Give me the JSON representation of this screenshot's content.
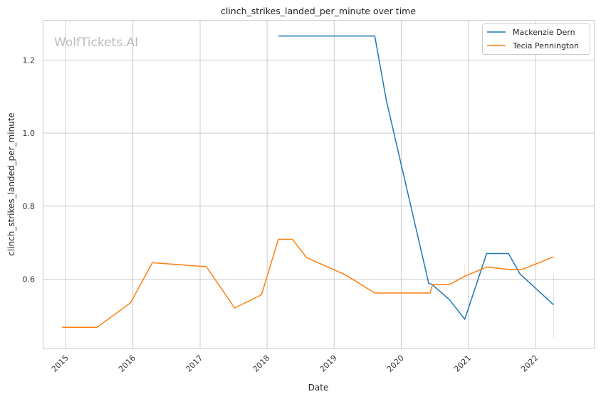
{
  "chart_data": {
    "type": "line",
    "title": "clinch_strikes_landed_per_minute over time",
    "xlabel": "Date",
    "ylabel": "clinch_strikes_landed_per_minute",
    "watermark": "WolfTickets.AI",
    "x_ticks": [
      "2015",
      "2016",
      "2017",
      "2018",
      "2019",
      "2020",
      "2021",
      "2022"
    ],
    "y_ticks": [
      "0.6",
      "0.8",
      "1.0",
      "1.2"
    ],
    "ylim": [
      0.41,
      1.31
    ],
    "xlim": [
      "2014-09-01",
      "2022-11-15"
    ],
    "grid": true,
    "legend_position": "top-right",
    "series": [
      {
        "name": "Mackenzie Dern",
        "color": "#1f77b4",
        "points": [
          [
            "2018-03-03",
            1.266
          ],
          [
            "2019-08-10",
            1.266
          ],
          [
            "2019-10-12",
            1.09
          ],
          [
            "2020-05-30",
            0.588
          ],
          [
            "2020-06-15",
            0.586
          ],
          [
            "2020-09-19",
            0.544
          ],
          [
            "2020-12-12",
            0.49
          ],
          [
            "2021-04-10",
            0.67
          ],
          [
            "2021-08-07",
            0.67
          ],
          [
            "2021-10-09",
            0.614
          ],
          [
            "2022-04-09",
            0.53
          ]
        ]
      },
      {
        "name": "Tecia Pennington",
        "color": "#ff7f0e",
        "points": [
          [
            "2014-12-12",
            0.468
          ],
          [
            "2015-06-20",
            0.468
          ],
          [
            "2015-12-19",
            0.535
          ],
          [
            "2016-04-16",
            0.645
          ],
          [
            "2017-02-04",
            0.634
          ],
          [
            "2017-07-08",
            0.521
          ],
          [
            "2017-12-01",
            0.557
          ],
          [
            "2018-03-03",
            0.709
          ],
          [
            "2018-05-19",
            0.709
          ],
          [
            "2018-08-04",
            0.659
          ],
          [
            "2019-03-02",
            0.612
          ],
          [
            "2019-08-10",
            0.562
          ],
          [
            "2020-06-06",
            0.562
          ],
          [
            "2020-06-20",
            0.585
          ],
          [
            "2020-09-19",
            0.585
          ],
          [
            "2020-12-12",
            0.608
          ],
          [
            "2021-04-10",
            0.633
          ],
          [
            "2021-08-21",
            0.626
          ],
          [
            "2021-10-23",
            0.627
          ],
          [
            "2022-04-09",
            0.661
          ]
        ]
      }
    ],
    "error_bars": [
      {
        "x": "2020-12-12",
        "low": 0.605,
        "high": 0.64,
        "color": "#ff7f0e"
      },
      {
        "x": "2022-04-09",
        "low": 0.44,
        "high": 0.615,
        "color": "#1f77b4"
      }
    ]
  }
}
